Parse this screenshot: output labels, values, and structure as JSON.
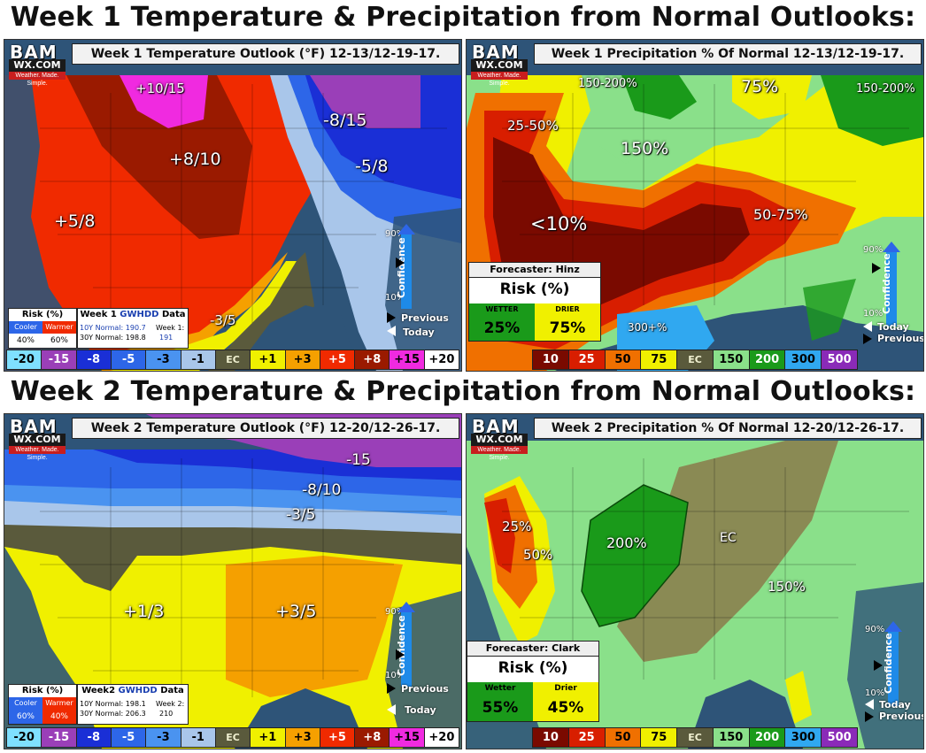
{
  "week1_heading": "Week 1 Temperature & Precipitation from Normal Outlooks:",
  "week2_heading": "Week 2 Temperature & Precipitation from Normal Outlooks:",
  "logo": {
    "name": "BAM",
    "wx": "WX.COM",
    "tagline": "Weather. Made. Simple."
  },
  "confidence": {
    "label": "Confidence",
    "high": "90%",
    "low": "10%"
  },
  "nav": {
    "previous": "Previous",
    "today": "Today"
  },
  "temp_legend": [
    {
      "label": "-20",
      "color": "#7fe0ff"
    },
    {
      "label": "-15",
      "color": "#9a3fb8"
    },
    {
      "label": "-8",
      "color": "#1a2fd6"
    },
    {
      "label": "-5",
      "color": "#2d66e8"
    },
    {
      "label": "-3",
      "color": "#4a93f0"
    },
    {
      "label": "-1",
      "color": "#a9c6ea"
    },
    {
      "label": "EC",
      "color": "#5a5a3c"
    },
    {
      "label": "+1",
      "color": "#f0f000"
    },
    {
      "label": "+3",
      "color": "#f5a000"
    },
    {
      "label": "+5",
      "color": "#f02a00"
    },
    {
      "label": "+8",
      "color": "#9a1a00"
    },
    {
      "label": "+15",
      "color": "#f02ae0"
    },
    {
      "label": "+20",
      "color": "#ffffff"
    }
  ],
  "precip_legend": [
    {
      "label": "10",
      "color": "#7a0a00"
    },
    {
      "label": "25",
      "color": "#d81e00"
    },
    {
      "label": "50",
      "color": "#f07000"
    },
    {
      "label": "75",
      "color": "#f0f000"
    },
    {
      "label": "EC",
      "color": "#5a5a3c"
    },
    {
      "label": "150",
      "color": "#8ae08a"
    },
    {
      "label": "200",
      "color": "#1a9a1a"
    },
    {
      "label": "300",
      "color": "#30a8f0"
    },
    {
      "label": "500",
      "color": "#8a2ab8"
    }
  ],
  "week1_temp": {
    "title": "Week 1 Temperature Outlook (°F) 12-13/12-19-17.",
    "labels": [
      "+10/15",
      "+8/10",
      "+5/8",
      "-8/15",
      "-5/8",
      "-3/5"
    ],
    "risk": {
      "title": "Risk (%)",
      "cooler_label": "Cooler",
      "warmer_label": "Warmer",
      "cooler": "40%",
      "warmer": "60%",
      "cooler_color": "#2d66e8",
      "warmer_color": "#f02a00"
    },
    "gwhdd": {
      "title_prefix": "Week 1 ",
      "title_brand": "GWHDD",
      "title_suffix": " Data",
      "normal10": "10Y Normal: 190.7",
      "normal30": "30Y Normal: 198.8",
      "week_label": "Week 1:",
      "week_value": "191"
    }
  },
  "week1_precip": {
    "title": "Week 1 Precipitation % Of Normal 12-13/12-19-17.",
    "labels": [
      "150-200%",
      "75%",
      "150-200%",
      "25-50%",
      "150%",
      "<10%",
      "50-75%",
      "300+%"
    ],
    "forecaster": "Forecaster: Hinz",
    "risk_title": "Risk (%)",
    "wetter_label": "WETTER",
    "drier_label": "DRIER",
    "wetter": "25%",
    "drier": "75%",
    "wetter_color": "#1a9a1a",
    "drier_color": "#f0f000"
  },
  "week2_temp": {
    "title": "Week 2 Temperature Outlook (°F) 12-20/12-26-17.",
    "labels": [
      "-15",
      "-8/10",
      "-3/5",
      "+1/3",
      "+3/5"
    ],
    "risk": {
      "title": "Risk (%)",
      "cooler_label": "Cooler",
      "warmer_label": "Warmer",
      "cooler": "60%",
      "warmer": "40%",
      "cooler_color": "#2d66e8",
      "warmer_color": "#f02a00"
    },
    "gwhdd": {
      "title_prefix": "Week2 ",
      "title_brand": "GWHDD",
      "title_suffix": " Data",
      "normal10": "10Y Normal: 198.1",
      "normal30": "30Y Normal: 206.3",
      "week_label": "Week 2:",
      "week_value": "210"
    }
  },
  "week2_precip": {
    "title": "Week 2 Precipitation % Of Normal 12-20/12-26-17.",
    "labels": [
      "25%",
      "50%",
      "200%",
      "EC",
      "150%"
    ],
    "forecaster": "Forecaster: Clark",
    "risk_title": "Risk (%)",
    "wetter_label": "Wetter",
    "drier_label": "Drier",
    "wetter": "55%",
    "drier": "45%",
    "wetter_color": "#1a9a1a",
    "drier_color": "#f0f000"
  }
}
